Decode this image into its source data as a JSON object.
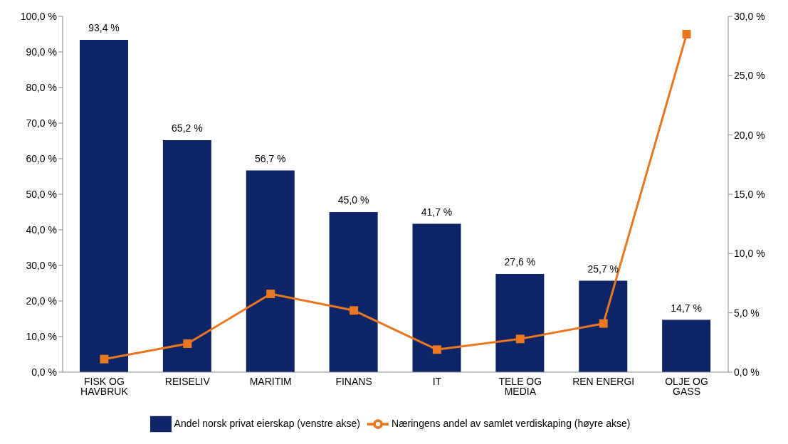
{
  "chart_data": {
    "type": "bar",
    "categories": [
      "FISK OG HAVBRUK",
      "REISELIV",
      "MARITIM",
      "FINANS",
      "IT",
      "TELE OG MEDIA",
      "REN ENERGI",
      "OLJE OG GASS"
    ],
    "series": [
      {
        "name": "Andel norsk privat eierskap  (venstre akse)",
        "color": "#0d2466",
        "values": [
          93.4,
          65.2,
          56.7,
          45.0,
          41.7,
          27.6,
          25.7,
          14.7
        ],
        "value_labels": [
          "93,4 %",
          "65,2 %",
          "56,7 %",
          "45,0 %",
          "41,7 %",
          "27,6 %",
          "25,7 %",
          "14,7 %"
        ]
      },
      {
        "name": "Næringens andel av samlet verdiskaping (høyre akse)",
        "type": "line",
        "axis": "y2",
        "color": "#e87722",
        "marker": "square",
        "values": [
          1.1,
          2.4,
          6.6,
          5.2,
          1.9,
          2.8,
          4.1,
          28.5
        ]
      }
    ],
    "ylim": [
      0,
      100
    ],
    "yticks": [
      {
        "value": 0,
        "label": "0,0 %"
      },
      {
        "value": 10,
        "label": "10,0 %"
      },
      {
        "value": 20,
        "label": "20,0 %"
      },
      {
        "value": 30,
        "label": "30,0 %"
      },
      {
        "value": 40,
        "label": "40,0 %"
      },
      {
        "value": 50,
        "label": "50,0 %"
      },
      {
        "value": 60,
        "label": "60,0 %"
      },
      {
        "value": 70,
        "label": "70,0 %"
      },
      {
        "value": 80,
        "label": "80,0 %"
      },
      {
        "value": 90,
        "label": "90,0 %"
      },
      {
        "value": 100,
        "label": "100,0 %"
      }
    ],
    "y2lim": [
      0,
      30
    ],
    "y2ticks": [
      {
        "value": 0,
        "label": "0,0 %"
      },
      {
        "value": 5,
        "label": "5,0 %"
      },
      {
        "value": 10,
        "label": "10,0 %"
      },
      {
        "value": 15,
        "label": "15,0 %"
      },
      {
        "value": 20,
        "label": "20,0 %"
      },
      {
        "value": 25,
        "label": "25,0 %"
      },
      {
        "value": 30,
        "label": "30,0 %"
      }
    ],
    "grid": false,
    "legend": "bottom"
  }
}
